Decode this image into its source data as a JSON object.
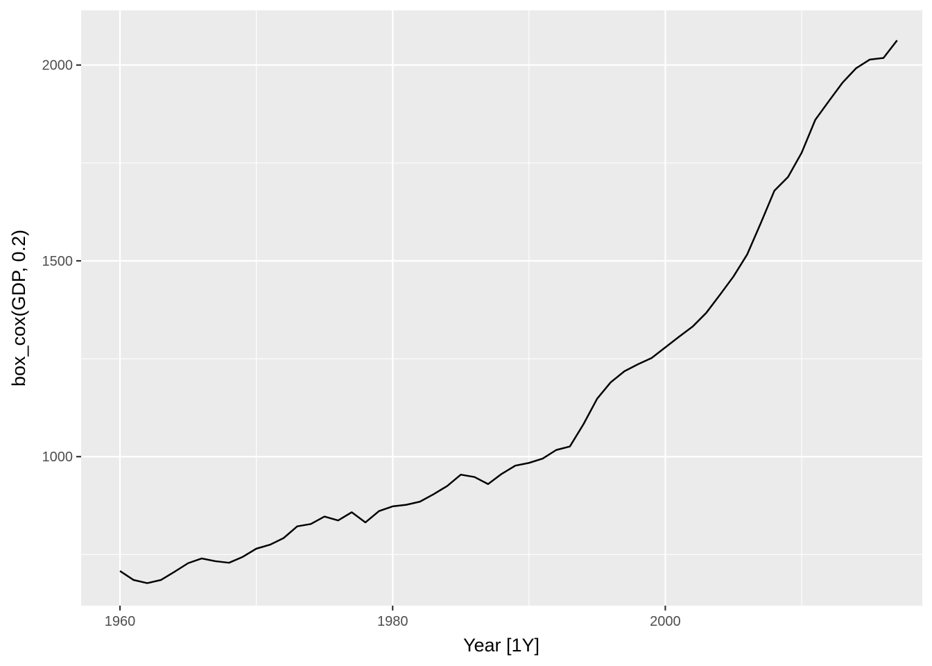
{
  "chart_data": {
    "type": "line",
    "title": "",
    "xlabel": "Year [1Y]",
    "ylabel": "box_cox(GDP, 0.2)",
    "xlim": [
      1957.15,
      2018.85
    ],
    "ylim": [
      619.5,
      2139.5
    ],
    "x_ticks": [
      1960,
      1980,
      2000
    ],
    "x_tick_labels": [
      "1960",
      "1980",
      "2000"
    ],
    "x_minor_ticks": [
      1970,
      1990,
      2010
    ],
    "y_ticks": [
      1000,
      1500,
      2000
    ],
    "y_tick_labels": [
      "1000",
      "1500",
      "2000"
    ],
    "y_minor_ticks": [
      750,
      1250,
      1750
    ],
    "grid": true,
    "line_color": "#000000",
    "panel_color": "#EBEBEB",
    "series": [
      {
        "x": [
          1960,
          1961,
          1962,
          1963,
          1964,
          1965,
          1966,
          1967,
          1968,
          1969,
          1970,
          1971,
          1972,
          1973,
          1974,
          1975,
          1976,
          1977,
          1978,
          1979,
          1980,
          1981,
          1982,
          1983,
          1984,
          1985,
          1986,
          1987,
          1988,
          1989,
          1990,
          1991,
          1992,
          1993,
          1994,
          1995,
          1996,
          1997,
          1998,
          1999,
          2000,
          2001,
          2002,
          2003,
          2004,
          2005,
          2006,
          2007,
          2008,
          2009,
          2010,
          2011,
          2012,
          2013,
          2014,
          2015,
          2016,
          2017
        ],
        "values": [
          708,
          685,
          677,
          685,
          706,
          728,
          740,
          733,
          729,
          744,
          765,
          775,
          792,
          822,
          828,
          847,
          837,
          858,
          832,
          861,
          873,
          877,
          885,
          904,
          925,
          954,
          948,
          930,
          956,
          977,
          984,
          995,
          1017,
          1026,
          1083,
          1148,
          1190,
          1218,
          1236,
          1252,
          1279,
          1306,
          1332,
          1367,
          1413,
          1460,
          1516,
          1596,
          1679,
          1714,
          1776,
          1860,
          1908,
          1955,
          1992,
          2014,
          2018,
          2063
        ]
      }
    ]
  }
}
